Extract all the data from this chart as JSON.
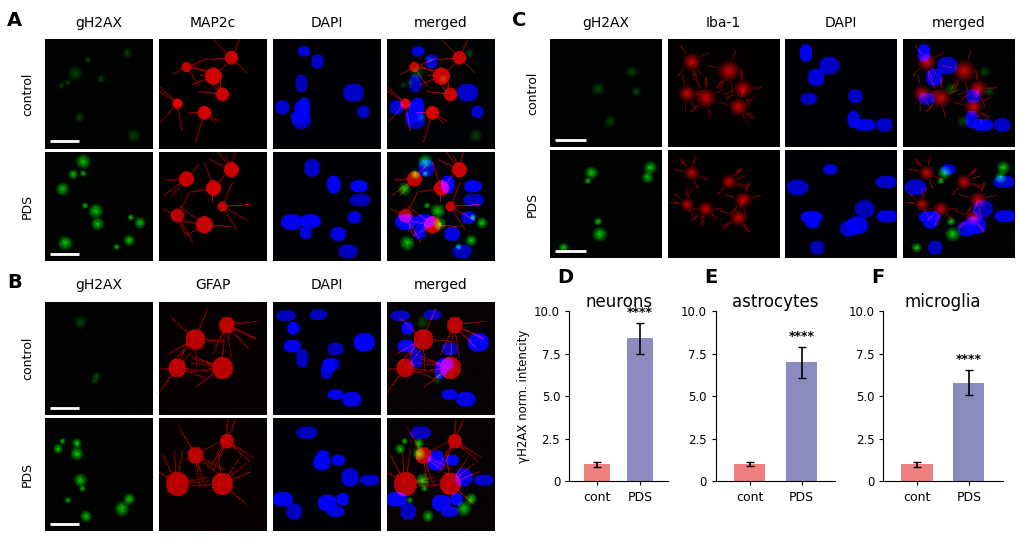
{
  "figure_width": 10.2,
  "figure_height": 5.41,
  "background_color": "#ffffff",
  "panel_A": {
    "label": "A",
    "row_labels": [
      "control",
      "PDS"
    ],
    "col_labels": [
      "gH2AX",
      "MAP2c",
      "DAPI",
      "merged"
    ]
  },
  "panel_B": {
    "label": "B",
    "row_labels": [
      "control",
      "PDS"
    ],
    "col_labels": [
      "gH2AX",
      "GFAP",
      "DAPI",
      "merged"
    ]
  },
  "panel_C": {
    "label": "C",
    "row_labels": [
      "control",
      "PDS"
    ],
    "col_labels": [
      "gH2AX",
      "Iba-1",
      "DAPI",
      "merged"
    ]
  },
  "bar_charts": [
    {
      "label": "D",
      "title": "neurons",
      "categories": [
        "cont",
        "PDS"
      ],
      "values": [
        1.0,
        8.4
      ],
      "errors": [
        0.15,
        0.9
      ],
      "bar_colors": [
        "#f08080",
        "#8b8bbf"
      ],
      "significance": "****",
      "ylim": [
        0,
        10.0
      ],
      "yticks": [
        0,
        2.5,
        5.0,
        7.5,
        10.0
      ],
      "ylabel": "γH2AX norm. intencity"
    },
    {
      "label": "E",
      "title": "astrocytes",
      "categories": [
        "cont",
        "PDS"
      ],
      "values": [
        1.0,
        7.0
      ],
      "errors": [
        0.12,
        0.9
      ],
      "bar_colors": [
        "#f08080",
        "#8b8bbf"
      ],
      "significance": "****",
      "ylim": [
        0,
        10.0
      ],
      "yticks": [
        0,
        2.5,
        5.0,
        7.5,
        10.0
      ],
      "ylabel": "γH2AX norm. intencity"
    },
    {
      "label": "F",
      "title": "microglia",
      "categories": [
        "cont",
        "PDS"
      ],
      "values": [
        1.0,
        5.8
      ],
      "errors": [
        0.15,
        0.75
      ],
      "bar_colors": [
        "#f08080",
        "#8b8bbf"
      ],
      "significance": "****",
      "ylim": [
        0,
        10.0
      ],
      "yticks": [
        0,
        2.5,
        5.0,
        7.5,
        10.0
      ],
      "ylabel": "γH2AX norm. intencity"
    }
  ],
  "label_color": "#000000",
  "label_fontsize": 14,
  "col_label_fontsize": 10,
  "row_label_fontsize": 9,
  "title_fontsize": 11,
  "axis_fontsize": 8.5,
  "tick_fontsize": 8.5
}
